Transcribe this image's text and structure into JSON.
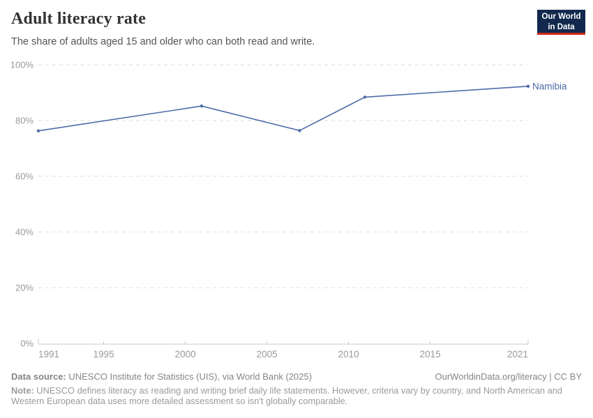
{
  "header": {
    "title": "Adult literacy rate",
    "subtitle": "The share of adults aged 15 and older who can both read and write.",
    "logo": {
      "line1": "Our World",
      "line2": "in Data"
    }
  },
  "colors": {
    "series_blue": "#4C6BA8",
    "logo_navy": "#12294D",
    "logo_red": "#CF2A1E",
    "grid": "#DEDEDE",
    "axis": "#C8C8C8",
    "tick_label": "#999999"
  },
  "chart_data": {
    "type": "line",
    "title": "Adult literacy rate",
    "xlabel": "",
    "ylabel": "",
    "xlim": [
      1991,
      2021
    ],
    "ylim": [
      0,
      100
    ],
    "grid": "horizontal-dashed",
    "legend_position": "end-of-line",
    "x_ticks": [
      1991,
      1995,
      2000,
      2005,
      2010,
      2015,
      2021
    ],
    "y_ticks": [
      0,
      20,
      40,
      60,
      80,
      100
    ],
    "y_tick_suffix": "%",
    "series": [
      {
        "name": "Namibia",
        "color": "#4C6BA8",
        "x": [
          1991,
          2001,
          2007,
          2011,
          2021
        ],
        "values": [
          76.3,
          85.2,
          76.4,
          88.4,
          92.3
        ]
      }
    ]
  },
  "footer": {
    "datasource_label": "Data source:",
    "datasource_text": " UNESCO Institute for Statistics (UIS), via World Bank (2025)",
    "link_text": "OurWorldinData.org/literacy | CC BY",
    "note_label": "Note:",
    "note_text": " UNESCO defines literacy as reading and writing brief daily life statements. However, criteria vary by country, and North American and Western European data uses more detailed assessment so isn't globally comparable."
  }
}
